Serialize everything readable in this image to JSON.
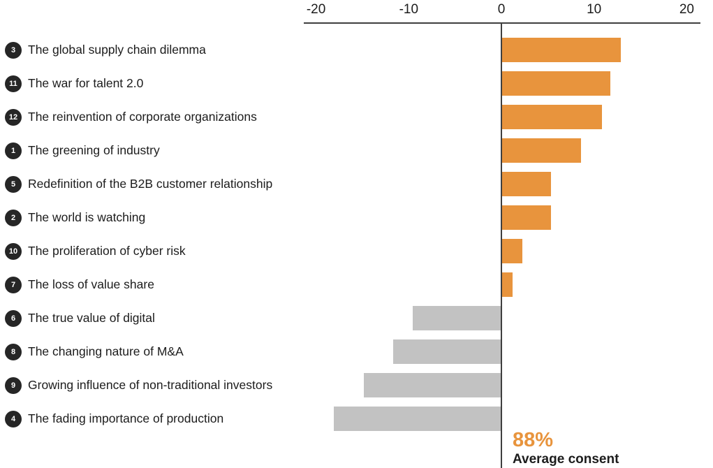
{
  "chart_data": {
    "type": "bar",
    "orientation": "horizontal-diverging",
    "title": "",
    "xlabel": "",
    "ylabel": "",
    "axis": {
      "position": "top",
      "ticks": [
        "-20",
        "-10",
        "0",
        "10",
        "20"
      ],
      "tick_values": [
        -20,
        -10,
        0,
        10,
        20
      ],
      "range": [
        -21.3,
        21.5
      ],
      "grid": false
    },
    "items": [
      {
        "badge": "3",
        "label": "The global supply chain dilemma",
        "value": 12.8
      },
      {
        "badge": "11",
        "label": "The war for talent 2.0",
        "value": 11.7
      },
      {
        "badge": "12",
        "label": "The reinvention of corporate organizations",
        "value": 10.8
      },
      {
        "badge": "1",
        "label": "The greening of industry",
        "value": 8.5
      },
      {
        "badge": "5",
        "label": "Redefinition of the B2B customer relationship",
        "value": 5.3
      },
      {
        "badge": "2",
        "label": "The world is watching",
        "value": 5.3
      },
      {
        "badge": "10",
        "label": "The proliferation of cyber risk",
        "value": 2.2
      },
      {
        "badge": "7",
        "label": "The loss of value share",
        "value": 1.1
      },
      {
        "badge": "6",
        "label": "The true value of digital",
        "value": -9.5
      },
      {
        "badge": "8",
        "label": "The changing nature of M&A",
        "value": -11.6
      },
      {
        "badge": "9",
        "label": "Growing influence of non-traditional investors",
        "value": -14.8
      },
      {
        "badge": "4",
        "label": "The fading importance of production",
        "value": -18.0
      }
    ],
    "annotation": {
      "value": "88%",
      "label": "Average consent"
    },
    "colors": {
      "positive_bar": "#E8943D",
      "negative_bar": "#C2C2C2",
      "badge": "#262626",
      "badge_text": "#FFFFFF",
      "axis_line": "#3F3F3F",
      "zero_line": "#3F3F3F",
      "text": "#1C1C1C",
      "annotation_value": "#E8943D"
    },
    "legend": null
  }
}
